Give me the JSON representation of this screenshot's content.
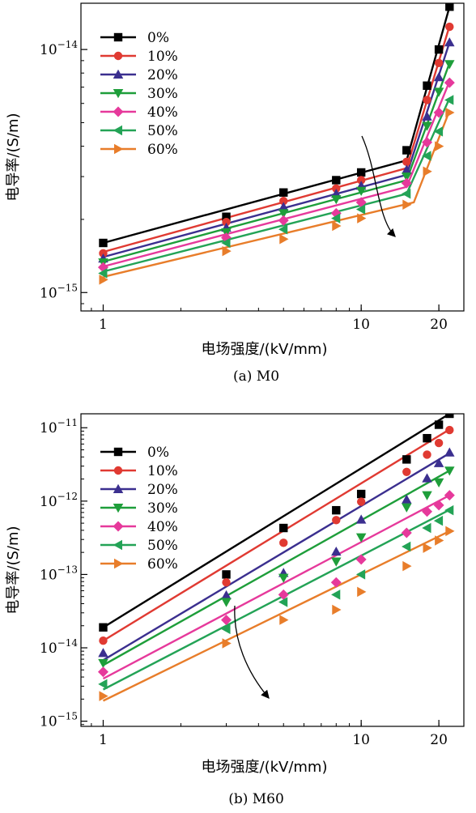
{
  "chart_data": [
    {
      "type": "scatter",
      "panel_caption": "(a) M0",
      "xlabel": "电场强度/(kV/mm)",
      "ylabel": "电导率/(S/m)",
      "xscale": "log",
      "yscale": "log",
      "xlim": [
        0.82,
        25
      ],
      "ylim": [
        8.4e-16,
        1.55e-14
      ],
      "xticks": [
        1,
        10,
        20
      ],
      "xticklabels": [
        "1",
        "10",
        "20"
      ],
      "yticks": [
        1e-15,
        1e-14
      ],
      "yticklabels": [
        {
          "base": "10",
          "exp": "−15"
        },
        {
          "base": "10",
          "exp": "−14"
        }
      ],
      "legend_position": "top-left",
      "annotation": "curved arrow indicating decreasing conductivity with increasing content",
      "series": [
        {
          "name": "0%",
          "color": "#000000",
          "marker": "square",
          "x": [
            1,
            3,
            5,
            8,
            10,
            15,
            18,
            20,
            22
          ],
          "y": [
            1.6e-15,
            2.05e-15,
            2.58e-15,
            2.9e-15,
            3.12e-15,
            3.85e-15,
            7.1e-15,
            1e-14,
            1.5e-14
          ],
          "fit_x": [
            1,
            15,
            22
          ],
          "fit_y": [
            1.6e-15,
            3.5e-15,
            1.5e-14
          ]
        },
        {
          "name": "10%",
          "color": "#e03a32",
          "marker": "circle",
          "x": [
            1,
            3,
            5,
            8,
            10,
            15,
            18,
            20,
            22
          ],
          "y": [
            1.45e-15,
            1.95e-15,
            2.38e-15,
            2.68e-15,
            2.9e-15,
            3.45e-15,
            6.2e-15,
            8.8e-15,
            1.24e-14
          ],
          "fit_x": [
            1,
            15,
            22
          ],
          "fit_y": [
            1.47e-15,
            3.25e-15,
            1.25e-14
          ]
        },
        {
          "name": "20%",
          "color": "#3b2f8f",
          "marker": "triangle-up",
          "x": [
            1,
            3,
            5,
            8,
            10,
            15,
            18,
            20,
            22
          ],
          "y": [
            1.38e-15,
            1.85e-15,
            2.25e-15,
            2.55e-15,
            2.75e-15,
            3.2e-15,
            5.3e-15,
            7.7e-15,
            1.07e-14
          ],
          "fit_x": [
            1,
            15,
            22
          ],
          "fit_y": [
            1.4e-15,
            3.05e-15,
            1.07e-14
          ]
        },
        {
          "name": "30%",
          "color": "#1e9e3a",
          "marker": "triangle-down",
          "x": [
            1,
            3,
            5,
            8,
            10,
            15,
            18,
            20,
            22
          ],
          "y": [
            1.33e-15,
            1.77e-15,
            2.12e-15,
            2.42e-15,
            2.62e-15,
            3e-15,
            4.85e-15,
            6.7e-15,
            8.7e-15
          ],
          "fit_x": [
            1,
            15,
            22
          ],
          "fit_y": [
            1.34e-15,
            2.9e-15,
            8.8e-15
          ]
        },
        {
          "name": "40%",
          "color": "#e6399b",
          "marker": "diamond",
          "x": [
            1,
            3,
            5,
            8,
            10,
            15,
            18,
            20,
            22
          ],
          "y": [
            1.27e-15,
            1.68e-15,
            1.98e-15,
            2.12e-15,
            2.35e-15,
            2.82e-15,
            4.15e-15,
            5.5e-15,
            7.3e-15
          ],
          "fit_x": [
            1,
            15,
            22
          ],
          "fit_y": [
            1.28e-15,
            2.72e-15,
            7.4e-15
          ]
        },
        {
          "name": "50%",
          "color": "#23a356",
          "marker": "triangle-left",
          "x": [
            1,
            3,
            5,
            8,
            10,
            15,
            18,
            20,
            22
          ],
          "y": [
            1.2e-15,
            1.6e-15,
            1.82e-15,
            2.02e-15,
            2.2e-15,
            2.55e-15,
            3.65e-15,
            4.6e-15,
            6.2e-15
          ],
          "fit_x": [
            1,
            15,
            22
          ],
          "fit_y": [
            1.22e-15,
            2.55e-15,
            6.3e-15
          ]
        },
        {
          "name": "60%",
          "color": "#e87d2a",
          "marker": "triangle-right",
          "x": [
            1,
            3,
            5,
            8,
            10,
            15,
            18,
            20,
            22
          ],
          "y": [
            1.13e-15,
            1.48e-15,
            1.66e-15,
            1.88e-15,
            2.02e-15,
            2.3e-15,
            3.15e-15,
            4e-15,
            5.5e-15
          ],
          "fit_x": [
            1,
            16,
            22
          ],
          "fit_y": [
            1.16e-15,
            2.35e-15,
            5.6e-15
          ]
        }
      ]
    },
    {
      "type": "scatter",
      "panel_caption": "(b) M60",
      "xlabel": "电场强度/(kV/mm)",
      "ylabel": "电导率/(S/m)",
      "xscale": "log",
      "yscale": "log",
      "xlim": [
        0.82,
        25
      ],
      "ylim": [
        8.5e-16,
        1.55e-11
      ],
      "xticks": [
        1,
        10,
        20
      ],
      "xticklabels": [
        "1",
        "10",
        "20"
      ],
      "yticks": [
        1e-15,
        1e-14,
        1e-13,
        1e-12,
        1e-11
      ],
      "yticklabels": [
        {
          "base": "10",
          "exp": "−15"
        },
        {
          "base": "10",
          "exp": "−14"
        },
        {
          "base": "10",
          "exp": "−13"
        },
        {
          "base": "10",
          "exp": "−12"
        },
        {
          "base": "10",
          "exp": "−11"
        }
      ],
      "legend_position": "top-left",
      "annotation": "curved arrow indicating decreasing conductivity with increasing content",
      "series": [
        {
          "name": "0%",
          "color": "#000000",
          "marker": "square",
          "x": [
            1,
            3,
            5,
            8,
            10,
            15,
            18,
            20,
            22
          ],
          "y": [
            1.9e-14,
            1e-13,
            4.3e-13,
            7.5e-13,
            1.25e-12,
            3.7e-12,
            7.2e-12,
            1.1e-11,
            1.55e-11
          ],
          "fit_x": [
            1,
            22
          ],
          "fit_y": [
            1.9e-14,
            1.55e-11
          ]
        },
        {
          "name": "10%",
          "color": "#e03a32",
          "marker": "circle",
          "x": [
            1,
            3,
            5,
            8,
            10,
            15,
            18,
            20,
            22
          ],
          "y": [
            1.25e-14,
            7.8e-14,
            2.7e-13,
            5.5e-13,
            9.8e-13,
            2.5e-12,
            4.3e-12,
            6.2e-12,
            9.3e-12
          ],
          "fit_x": [
            1,
            22
          ],
          "fit_y": [
            1.25e-14,
            9.5e-12
          ]
        },
        {
          "name": "20%",
          "color": "#3b2f8f",
          "marker": "triangle-up",
          "x": [
            1,
            3,
            5,
            8,
            10,
            15,
            18,
            20,
            22
          ],
          "y": [
            8.5e-15,
            5.2e-14,
            1.05e-13,
            2.05e-13,
            5.6e-13,
            1.05e-12,
            2.05e-12,
            3.3e-12,
            4.6e-12
          ],
          "fit_x": [
            1,
            22
          ],
          "fit_y": [
            6.8e-15,
            4.5e-12
          ]
        },
        {
          "name": "30%",
          "color": "#1e9e3a",
          "marker": "triangle-down",
          "x": [
            1,
            3,
            5,
            8,
            10,
            15,
            18,
            20,
            22
          ],
          "y": [
            6.2e-15,
            4.2e-14,
            9e-14,
            1.5e-13,
            3.2e-13,
            8.2e-13,
            1.2e-12,
            1.8e-12,
            2.6e-12
          ],
          "fit_x": [
            1,
            22
          ],
          "fit_y": [
            5.8e-15,
            2.6e-12
          ]
        },
        {
          "name": "40%",
          "color": "#e6399b",
          "marker": "diamond",
          "x": [
            1,
            3,
            5,
            8,
            10,
            15,
            18,
            20,
            22
          ],
          "y": [
            4.7e-15,
            2.4e-14,
            5.3e-14,
            7.8e-14,
            1.6e-13,
            3.7e-13,
            7.2e-13,
            8.8e-13,
            1.2e-12
          ],
          "fit_x": [
            1,
            22
          ],
          "fit_y": [
            3.8e-15,
            1.2e-12
          ]
        },
        {
          "name": "50%",
          "color": "#23a356",
          "marker": "triangle-left",
          "x": [
            1,
            3,
            5,
            8,
            10,
            15,
            18,
            20,
            22
          ],
          "y": [
            3.2e-15,
            1.8e-14,
            4.2e-14,
            5.3e-14,
            1e-13,
            2.4e-13,
            4.3e-13,
            5.4e-13,
            7.5e-13
          ],
          "fit_x": [
            1,
            22
          ],
          "fit_y": [
            2.7e-15,
            7.6e-13
          ]
        },
        {
          "name": "60%",
          "color": "#e87d2a",
          "marker": "triangle-right",
          "x": [
            1,
            3,
            5,
            8,
            10,
            15,
            18,
            20,
            22
          ],
          "y": [
            2.2e-15,
            1.15e-14,
            2.4e-14,
            3.3e-14,
            5.8e-14,
            1.3e-13,
            2.3e-13,
            2.9e-13,
            3.9e-13
          ],
          "fit_x": [
            1,
            22
          ],
          "fit_y": [
            1.9e-15,
            3.9e-13
          ]
        }
      ]
    }
  ]
}
